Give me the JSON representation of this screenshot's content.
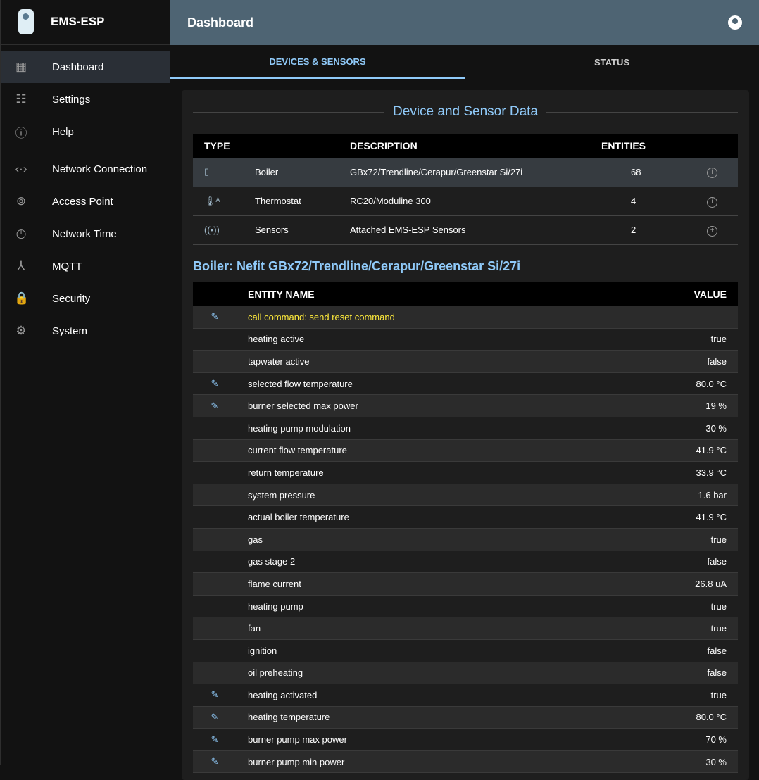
{
  "app": {
    "title": "EMS-ESP"
  },
  "sidebar": {
    "items": [
      {
        "label": "Dashboard",
        "icon": "dashboard-icon",
        "glyph": "▦"
      },
      {
        "label": "Settings",
        "icon": "tune-icon",
        "glyph": "☷"
      },
      {
        "label": "Help",
        "icon": "info-icon",
        "glyph": "ⓘ"
      },
      {
        "label": "Network Connection",
        "icon": "settings-ethernet-icon",
        "glyph": "‹·›"
      },
      {
        "label": "Access Point",
        "icon": "wifi-tethering-icon",
        "glyph": "⊚"
      },
      {
        "label": "Network Time",
        "icon": "clock-icon",
        "glyph": "◷"
      },
      {
        "label": "MQTT",
        "icon": "device-hub-icon",
        "glyph": "⅄"
      },
      {
        "label": "Security",
        "icon": "lock-icon",
        "glyph": "🔒"
      },
      {
        "label": "System",
        "icon": "gear-icon",
        "glyph": "⚙"
      }
    ]
  },
  "header": {
    "title": "Dashboard"
  },
  "tabs": [
    {
      "label": "DEVICES & SENSORS"
    },
    {
      "label": "STATUS"
    }
  ],
  "devices": {
    "title": "Device and Sensor Data",
    "columns": [
      "TYPE",
      "DESCRIPTION",
      "ENTITIES"
    ],
    "rows": [
      {
        "type": "Boiler",
        "description": "GBx72/Trendline/Cerapur/Greenstar Si/27i",
        "entities": "68",
        "icon": "boiler-icon",
        "glyph": "▯",
        "action": "info-icon",
        "aglyph": "i"
      },
      {
        "type": "Thermostat",
        "description": "RC20/Moduline 300",
        "entities": "4",
        "icon": "thermostat-icon",
        "glyph": "🌡ᴬ",
        "action": "info-icon",
        "aglyph": "i"
      },
      {
        "type": "Sensors",
        "description": "Attached EMS-ESP Sensors",
        "entities": "2",
        "icon": "sensors-icon",
        "glyph": "((•))",
        "action": "add-icon",
        "aglyph": "+"
      }
    ]
  },
  "boiler": {
    "title": "Boiler: Nefit GBx72/Trendline/Cerapur/Greenstar Si/27i",
    "columns": [
      "ENTITY NAME",
      "VALUE"
    ],
    "rows": [
      {
        "name": "call command: send reset command",
        "value": "",
        "edit": true,
        "cmd": true
      },
      {
        "name": "heating active",
        "value": "true",
        "edit": false
      },
      {
        "name": "tapwater active",
        "value": "false",
        "edit": false
      },
      {
        "name": "selected flow temperature",
        "value": "80.0 °C",
        "edit": true
      },
      {
        "name": "burner selected max power",
        "value": "19 %",
        "edit": true
      },
      {
        "name": "heating pump modulation",
        "value": "30 %",
        "edit": false
      },
      {
        "name": "current flow temperature",
        "value": "41.9 °C",
        "edit": false
      },
      {
        "name": "return temperature",
        "value": "33.9 °C",
        "edit": false
      },
      {
        "name": "system pressure",
        "value": "1.6 bar",
        "edit": false
      },
      {
        "name": "actual boiler temperature",
        "value": "41.9 °C",
        "edit": false
      },
      {
        "name": "gas",
        "value": "true",
        "edit": false
      },
      {
        "name": "gas stage 2",
        "value": "false",
        "edit": false
      },
      {
        "name": "flame current",
        "value": "26.8 uA",
        "edit": false
      },
      {
        "name": "heating pump",
        "value": "true",
        "edit": false
      },
      {
        "name": "fan",
        "value": "true",
        "edit": false
      },
      {
        "name": "ignition",
        "value": "false",
        "edit": false
      },
      {
        "name": "oil preheating",
        "value": "false",
        "edit": false
      },
      {
        "name": "heating activated",
        "value": "true",
        "edit": true
      },
      {
        "name": "heating temperature",
        "value": "80.0 °C",
        "edit": true
      },
      {
        "name": "burner pump max power",
        "value": "70 %",
        "edit": true
      },
      {
        "name": "burner pump min power",
        "value": "30 %",
        "edit": true
      }
    ]
  }
}
